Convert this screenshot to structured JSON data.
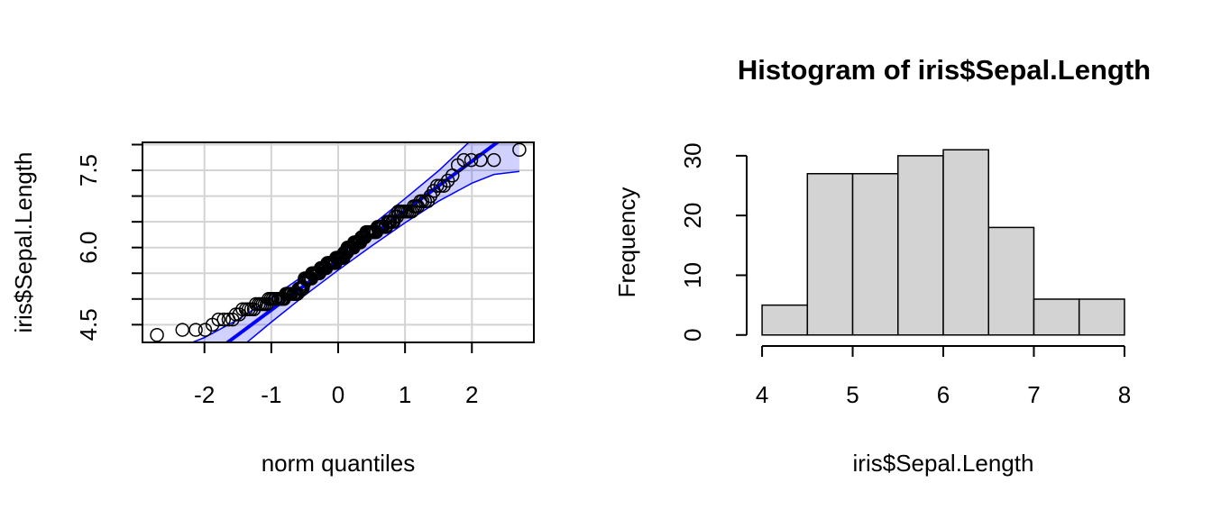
{
  "chart_data": [
    {
      "type": "scatter",
      "xlabel": "norm quantiles",
      "ylabel": "iris$Sepal.Length",
      "x": [
        -2.71,
        -2.33,
        -2.13,
        -1.99,
        -1.88,
        -1.79,
        -1.71,
        -1.64,
        -1.58,
        -1.53,
        -1.48,
        -1.43,
        -1.38,
        -1.34,
        -1.3,
        -1.26,
        -1.23,
        -1.19,
        -1.16,
        -1.13,
        -1.1,
        -1.07,
        -1.04,
        -1.01,
        -0.98,
        -0.95,
        -0.93,
        -0.9,
        -0.88,
        -0.85,
        -0.83,
        -0.81,
        -0.78,
        -0.76,
        -0.74,
        -0.72,
        -0.7,
        -0.67,
        -0.65,
        -0.63,
        -0.61,
        -0.59,
        -0.57,
        -0.55,
        -0.53,
        -0.51,
        -0.5,
        -0.48,
        -0.46,
        -0.44,
        -0.42,
        -0.4,
        -0.39,
        -0.37,
        -0.35,
        -0.33,
        -0.31,
        -0.3,
        -0.28,
        -0.26,
        -0.24,
        -0.23,
        -0.21,
        -0.19,
        -0.18,
        -0.16,
        -0.14,
        -0.13,
        -0.11,
        -0.09,
        -0.08,
        -0.06,
        -0.04,
        -0.03,
        -0.01,
        0.01,
        0.03,
        0.04,
        0.06,
        0.08,
        0.09,
        0.11,
        0.13,
        0.14,
        0.16,
        0.18,
        0.19,
        0.21,
        0.23,
        0.24,
        0.26,
        0.28,
        0.3,
        0.31,
        0.33,
        0.35,
        0.37,
        0.39,
        0.4,
        0.42,
        0.44,
        0.46,
        0.48,
        0.5,
        0.51,
        0.53,
        0.55,
        0.57,
        0.59,
        0.61,
        0.63,
        0.65,
        0.67,
        0.7,
        0.72,
        0.74,
        0.76,
        0.78,
        0.81,
        0.83,
        0.85,
        0.88,
        0.9,
        0.93,
        0.95,
        0.98,
        1.01,
        1.04,
        1.07,
        1.1,
        1.13,
        1.16,
        1.19,
        1.23,
        1.26,
        1.3,
        1.34,
        1.38,
        1.43,
        1.48,
        1.53,
        1.58,
        1.64,
        1.71,
        1.79,
        1.88,
        1.99,
        2.13,
        2.33,
        2.71
      ],
      "values": [
        4.3,
        4.4,
        4.4,
        4.4,
        4.5,
        4.6,
        4.6,
        4.6,
        4.6,
        4.7,
        4.7,
        4.8,
        4.8,
        4.8,
        4.8,
        4.8,
        4.9,
        4.9,
        4.9,
        4.9,
        4.9,
        4.9,
        5,
        5,
        5,
        5,
        5,
        5,
        5,
        5,
        5,
        5,
        5.1,
        5.1,
        5.1,
        5.1,
        5.1,
        5.1,
        5.1,
        5.1,
        5.1,
        5.2,
        5.2,
        5.2,
        5.2,
        5.3,
        5.4,
        5.4,
        5.4,
        5.4,
        5.4,
        5.4,
        5.5,
        5.5,
        5.5,
        5.5,
        5.5,
        5.5,
        5.5,
        5.6,
        5.6,
        5.6,
        5.6,
        5.6,
        5.6,
        5.7,
        5.7,
        5.7,
        5.7,
        5.7,
        5.7,
        5.7,
        5.7,
        5.8,
        5.8,
        5.8,
        5.8,
        5.8,
        5.8,
        5.8,
        5.9,
        5.9,
        5.9,
        6,
        6,
        6,
        6,
        6,
        6,
        6.1,
        6.1,
        6.1,
        6.1,
        6.1,
        6.1,
        6.2,
        6.2,
        6.2,
        6.2,
        6.3,
        6.3,
        6.3,
        6.3,
        6.3,
        6.3,
        6.3,
        6.3,
        6.3,
        6.4,
        6.4,
        6.4,
        6.4,
        6.4,
        6.4,
        6.4,
        6.5,
        6.5,
        6.5,
        6.5,
        6.5,
        6.6,
        6.6,
        6.7,
        6.7,
        6.7,
        6.7,
        6.7,
        6.7,
        6.7,
        6.7,
        6.8,
        6.8,
        6.8,
        6.9,
        6.9,
        6.9,
        6.9,
        7,
        7.1,
        7.2,
        7.2,
        7.2,
        7.3,
        7.4,
        7.6,
        7.7,
        7.7,
        7.7,
        7.7,
        7.9
      ],
      "color": "#000000",
      "reference_line": {
        "intercept": 5.75,
        "slope": 0.964,
        "color": "#0000ff"
      },
      "envelope": {
        "x": [
          -2.71,
          -2.33,
          -2,
          -1.5,
          -1,
          -0.5,
          0,
          0.5,
          1,
          1.5,
          2,
          2.33,
          2.71
        ],
        "lower": [
          2.26,
          2.92,
          3.4,
          4.01,
          4.55,
          5.07,
          5.56,
          6.03,
          6.48,
          6.9,
          7.25,
          7.42,
          7.48
        ],
        "upper": [
          4.02,
          4.08,
          4.25,
          4.6,
          5.02,
          5.47,
          5.94,
          6.43,
          6.95,
          7.49,
          8.1,
          8.58,
          9.24
        ],
        "color": "#0000ff"
      },
      "xlim": [
        -2.927,
        2.927
      ],
      "xticks": [
        -2,
        -1,
        0,
        1,
        2
      ],
      "ylim": [
        4.156,
        8.044
      ],
      "yticks": [
        4.5,
        {
          "value": 5,
          "label": null
        },
        {
          "value": 5.5,
          "label": null
        },
        {
          "value": 6,
          "label": "6.0"
        },
        {
          "value": 6.5,
          "label": null
        },
        {
          "value": 7,
          "label": null
        },
        7.5,
        {
          "value": 8,
          "label": null
        }
      ],
      "grid": true
    },
    {
      "type": "histogram",
      "title": "Histogram of iris$Sepal.Length",
      "xlabel": "iris$Sepal.Length",
      "ylabel": "Frequency",
      "bins": [
        4,
        4.5,
        5,
        5.5,
        6,
        6.5,
        7,
        7.5,
        8
      ],
      "values": [
        5,
        27,
        27,
        30,
        31,
        18,
        6,
        6
      ],
      "color": "#d3d3d3",
      "xlim": [
        3.84,
        8.16
      ],
      "xticks": [
        4,
        5,
        6,
        7,
        8
      ],
      "ylim": [
        -1.24,
        32.24
      ],
      "yticks": [
        0,
        10,
        20,
        30
      ]
    }
  ]
}
